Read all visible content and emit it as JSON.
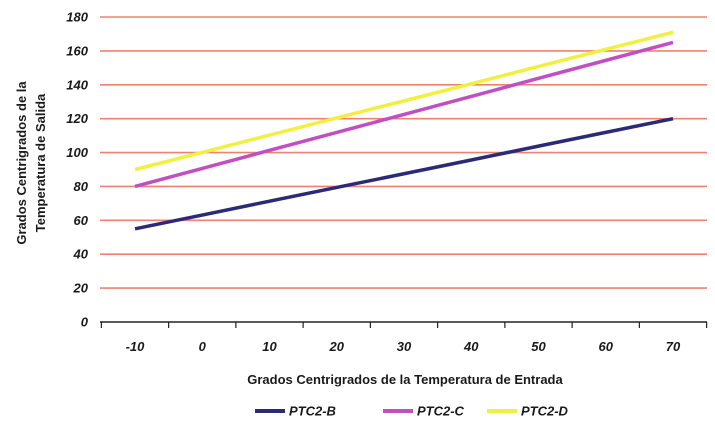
{
  "chart_data": {
    "type": "line",
    "x": [
      -10,
      0,
      10,
      20,
      30,
      40,
      50,
      60,
      70
    ],
    "x_tick_labels": [
      "-10",
      "0",
      "10",
      "20",
      "30",
      "40",
      "50",
      "60",
      "70"
    ],
    "y_tick_labels": [
      "0",
      "20",
      "40",
      "60",
      "80",
      "100",
      "120",
      "140",
      "160",
      "180"
    ],
    "ylim": [
      0,
      180
    ],
    "xlabel": "Grados Centrigrados de la Temperatura de Entrada",
    "ylabel_lines": [
      "Grados Centrigrados de la",
      "Temperatura de Salida"
    ],
    "grid": true,
    "legend_position": "bottom",
    "gridline_color": "#f08070",
    "series": [
      {
        "name": "PTC2-B",
        "color": "#2b2a78",
        "values": [
          55,
          63.1,
          71.3,
          79.4,
          87.5,
          95.6,
          103.8,
          111.9,
          120
        ]
      },
      {
        "name": "PTC2-C",
        "color": "#c04fc4",
        "values": [
          80,
          90.6,
          101.3,
          111.9,
          122.5,
          133.1,
          143.8,
          154.4,
          165
        ]
      },
      {
        "name": "PTC2-D",
        "color": "#f0f040",
        "values": [
          90,
          100.1,
          110.3,
          120.4,
          130.5,
          140.6,
          150.8,
          160.9,
          171
        ]
      }
    ]
  }
}
